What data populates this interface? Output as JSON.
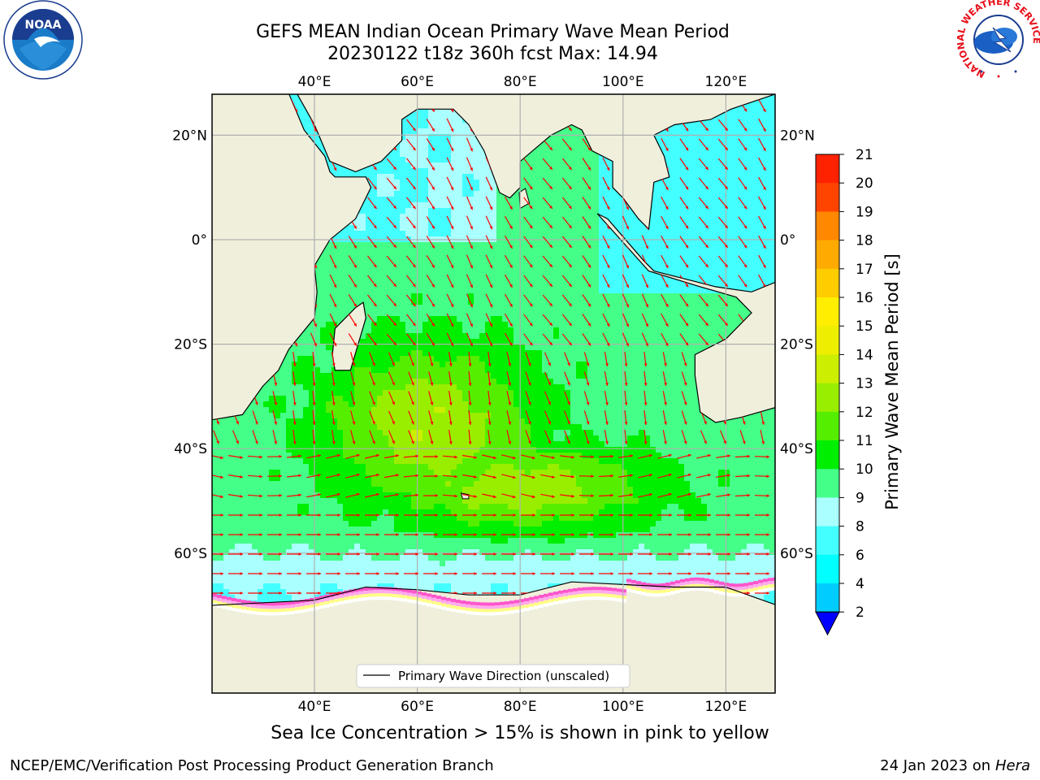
{
  "title_line1": "GEFS MEAN Indian Ocean Primary Wave Mean Period",
  "title_line2": "20230122 t18z 360h fcst   Max: 14.94",
  "note": "Sea Ice Concentration > 15% is shown in pink to yellow",
  "footer_left": "NCEP/EMC/Verification Post Processing Product Generation Branch",
  "footer_right_text": "24 Jan 2023 on ",
  "footer_right_italic": "Hera",
  "legend_label": "Primary Wave Direction (unscaled)",
  "colorbar": {
    "label": "Primary Wave Mean Period [s]",
    "ticks": [
      "2",
      "4",
      "6",
      "8",
      "9",
      "10",
      "11",
      "12",
      "13",
      "14",
      "15",
      "16",
      "17",
      "18",
      "19",
      "20",
      "21"
    ],
    "colors": [
      "#0073ff",
      "#00ccff",
      "#00ffff",
      "#44ffff",
      "#aaffff",
      "#44ff88",
      "#00ee00",
      "#55ee00",
      "#99ee00",
      "#ccee00",
      "#eeee00",
      "#ffee00",
      "#ffcc00",
      "#ffaa00",
      "#ff8800",
      "#ff4400",
      "#ff2200",
      "#ff0000"
    ],
    "under_color": "#0000ff"
  },
  "axes": {
    "top_lon_labels": [
      "40°E",
      "60°E",
      "80°E",
      "100°E",
      "120°E"
    ],
    "bottom_lon_labels": [
      "40°E",
      "60°E",
      "80°E",
      "100°E",
      "120°E"
    ],
    "left_lat_labels": [
      "20°N",
      "0°",
      "20°S",
      "40°S",
      "60°S"
    ],
    "right_lat_labels": [
      "20°N",
      "0°",
      "20°S",
      "40°S",
      "60°S"
    ]
  },
  "logos": {
    "noaa": "NOAA",
    "nws_ring": "NATIONAL WEATHER SERVICE"
  },
  "colors": {
    "land": "#efefdc",
    "arrow": "#ff0000",
    "coast": "#000000",
    "grid": "#b0b0b0"
  }
}
